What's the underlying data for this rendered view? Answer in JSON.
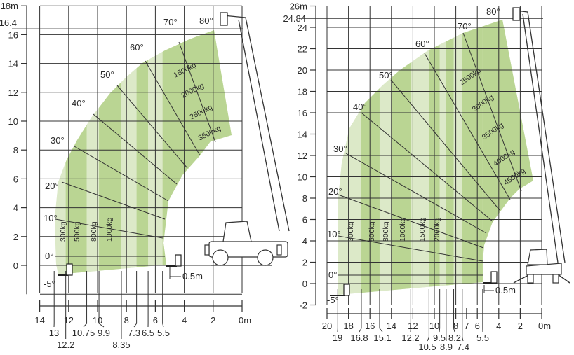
{
  "colors": {
    "band_dark": "#bad593",
    "band_light": "#dce9c8",
    "lines": "#333333"
  },
  "charts": [
    {
      "id": "left",
      "y_ticks": [
        "18m",
        "16",
        "14",
        "12",
        "10",
        "8",
        "6",
        "4",
        "2",
        "0"
      ],
      "y_top_value": "16.4",
      "x_ticks_row1": [
        "14",
        "12",
        "10",
        "8",
        "6",
        "4",
        "2",
        "0m"
      ],
      "x_ticks_row2": [
        "13",
        "10.75",
        "9.9",
        "7.3",
        "6.5",
        "5.5"
      ],
      "x_ticks_row3": [
        "12.2",
        "8.35"
      ],
      "angles": [
        "0°",
        "10°",
        "20°",
        "30°",
        "40°",
        "50°",
        "60°",
        "70°",
        "80°",
        "-5°"
      ],
      "loads_vertical": [
        "300kg",
        "500kg",
        "800kg",
        "1000kg"
      ],
      "loads_upper": [
        "1500kg",
        "2000kg",
        "2500kg",
        "3500kg"
      ],
      "fork_offset": "0.5m",
      "band_limits_m": [
        13,
        12.2,
        10.75,
        9.9,
        8.35,
        7.3,
        6.5,
        5.5
      ]
    },
    {
      "id": "right",
      "y_ticks": [
        "26m",
        "24",
        "22",
        "20",
        "18",
        "16",
        "14",
        "12",
        "10",
        "8",
        "6",
        "4",
        "2",
        "0",
        "-2"
      ],
      "y_top_value": "24.84",
      "x_ticks_row1": [
        "20",
        "18",
        "16",
        "14",
        "12",
        "10",
        "8",
        "7",
        "6",
        "4",
        "2",
        "0m"
      ],
      "x_ticks_row2": [
        "19",
        "16.8",
        "15.1",
        "12.2",
        "9.5",
        "8.2",
        "5.5"
      ],
      "x_ticks_row3": [
        "10.5",
        "8.9",
        "7.4"
      ],
      "angles": [
        "0°",
        "10°",
        "20°",
        "30°",
        "40°",
        "50°",
        "60°",
        "70°",
        "80°",
        "-5°"
      ],
      "loads_vertical": [
        "300kg",
        "500kg",
        "800kg",
        "1000kg",
        "1500kg",
        "2000kg"
      ],
      "loads_upper": [
        "2500kg",
        "3000kg",
        "3500kg",
        "4000kg",
        "4500kg"
      ],
      "fork_offset": "0.5m",
      "band_limits_m": [
        19,
        16.8,
        15.1,
        14,
        12.2,
        10.5,
        9.5,
        8.9,
        8.2,
        7.4,
        5.5
      ]
    }
  ]
}
